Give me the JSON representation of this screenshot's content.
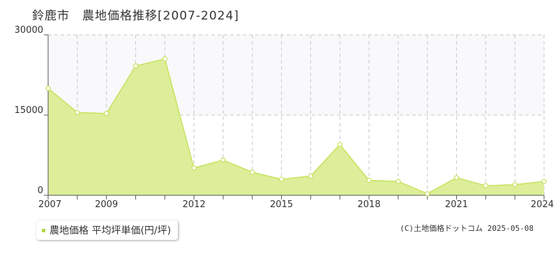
{
  "chart_title": "鈴鹿市　農地価格推移[2007-2024]",
  "legend": {
    "label": "農地価格 平均坪単価(円/坪)"
  },
  "credit": "(C)土地価格ドットコム 2025-05-08",
  "colors": {
    "area_fill": "#dcee99",
    "line": "#c7e25f",
    "marker_fill": "#ffffff",
    "legend_marker": "#b5d64a",
    "grid": "#c8c8c8",
    "upper_band": "#f9f8fa"
  },
  "chart_data": {
    "type": "area",
    "title": "鈴鹿市　農地価格推移[2007-2024]",
    "xlabel": "",
    "ylabel": "",
    "x": [
      2007,
      2008,
      2009,
      2010,
      2011,
      2012,
      2013,
      2014,
      2015,
      2016,
      2017,
      2018,
      2019,
      2020,
      2021,
      2022,
      2023,
      2024
    ],
    "x_tick_labels": [
      "2007",
      "2009",
      "2012",
      "2015",
      "2018",
      "2021",
      "2024"
    ],
    "y_tick_labels": [
      "0",
      "15000",
      "30000"
    ],
    "ylim": [
      0,
      30000
    ],
    "grid": true,
    "legend_position": "bottom-left",
    "series": [
      {
        "name": "農地価格 平均坪単価(円/坪)",
        "values": [
          20000,
          15500,
          15300,
          24200,
          25500,
          5100,
          6600,
          4300,
          3000,
          3600,
          9500,
          2800,
          2600,
          300,
          3300,
          1800,
          2000,
          2600
        ]
      }
    ]
  }
}
